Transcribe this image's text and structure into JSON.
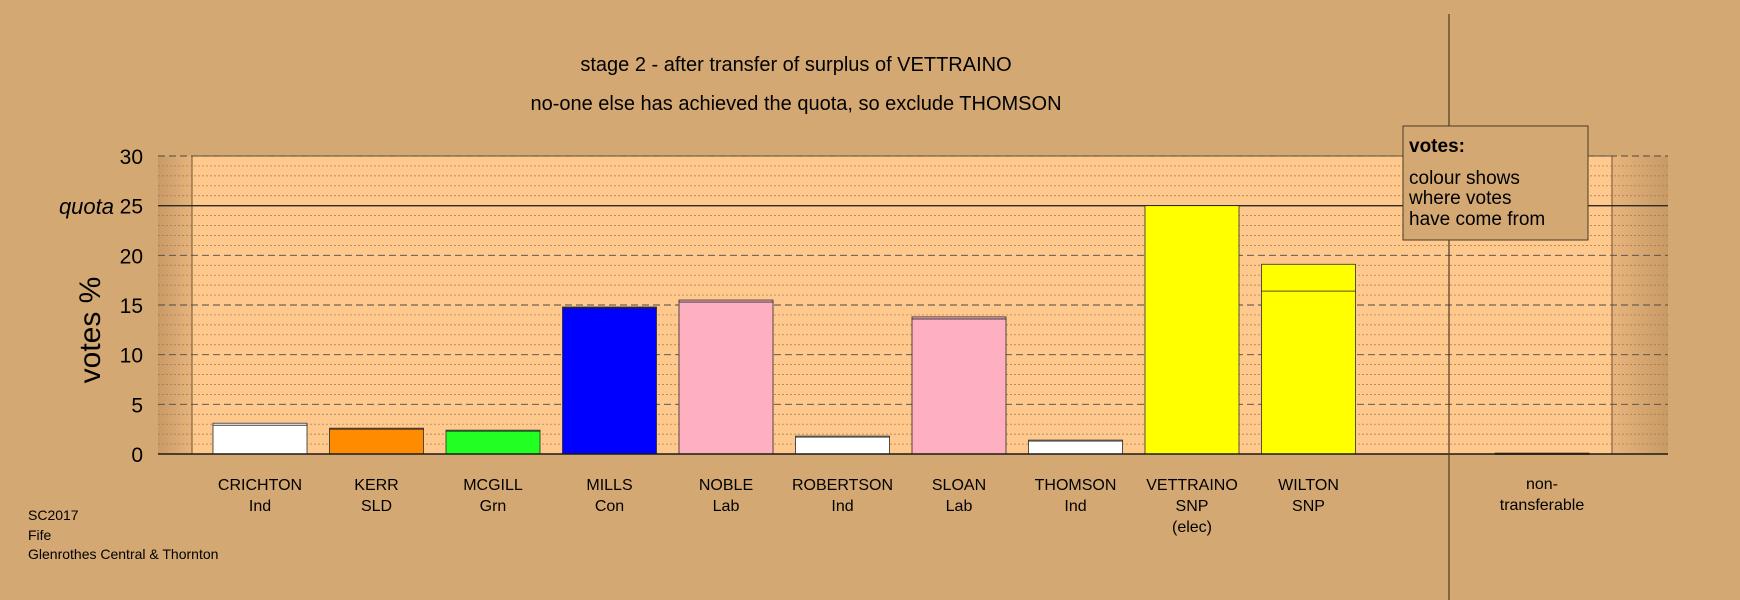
{
  "chart_data": {
    "type": "bar",
    "title_lines": [
      "stage 2 - after transfer of surplus of VETTRAINO",
      "no-one else has achieved the quota, so exclude THOMSON"
    ],
    "ylabel": "votes %",
    "ylim": [
      0,
      30
    ],
    "yticks": [
      0,
      5,
      10,
      15,
      20,
      25,
      30
    ],
    "quota": 25,
    "quota_label": "quota",
    "candidates": [
      {
        "name": "CRICHTON",
        "party": "Ind",
        "note": "",
        "color": "#ffffff",
        "segments": [
          {
            "value": 2.9,
            "color": "#ffffff"
          },
          {
            "value": 0.2,
            "color": "#ffffff"
          }
        ]
      },
      {
        "name": "KERR",
        "party": "SLD",
        "note": "",
        "color": "#ff8c00",
        "segments": [
          {
            "value": 2.5,
            "color": "#ff8c00"
          },
          {
            "value": 0.1,
            "color": "#ff8c00"
          }
        ]
      },
      {
        "name": "MCGILL",
        "party": "Grn",
        "note": "",
        "color": "#22ff22",
        "segments": [
          {
            "value": 2.3,
            "color": "#22ff22"
          },
          {
            "value": 0.1,
            "color": "#22ff22"
          }
        ]
      },
      {
        "name": "MILLS",
        "party": "Con",
        "note": "",
        "color": "#0000ff",
        "segments": [
          {
            "value": 14.7,
            "color": "#0000ff"
          },
          {
            "value": 0.1,
            "color": "#0000ff"
          }
        ]
      },
      {
        "name": "NOBLE",
        "party": "Lab",
        "note": "",
        "color": "#ffb0c0",
        "segments": [
          {
            "value": 15.3,
            "color": "#ffb0c0"
          },
          {
            "value": 0.2,
            "color": "#ffb0c0"
          }
        ]
      },
      {
        "name": "ROBERTSON",
        "party": "Ind",
        "note": "",
        "color": "#ffffff",
        "segments": [
          {
            "value": 1.7,
            "color": "#ffffff"
          },
          {
            "value": 0.1,
            "color": "#ffffff"
          }
        ]
      },
      {
        "name": "SLOAN",
        "party": "Lab",
        "note": "",
        "color": "#ffb0c0",
        "segments": [
          {
            "value": 13.6,
            "color": "#ffb0c0"
          },
          {
            "value": 0.2,
            "color": "#ffb0c0"
          }
        ]
      },
      {
        "name": "THOMSON",
        "party": "Ind",
        "note": "",
        "color": "#ffffff",
        "segments": [
          {
            "value": 1.3,
            "color": "#ffffff"
          },
          {
            "value": 0.1,
            "color": "#ffffff"
          }
        ]
      },
      {
        "name": "VETTRAINO",
        "party": "SNP",
        "note": "(elec)",
        "color": "#ffff00",
        "segments": [
          {
            "value": 25.0,
            "color": "#ffff00"
          }
        ]
      },
      {
        "name": "WILTON",
        "party": "SNP",
        "note": "",
        "color": "#ffff00",
        "segments": [
          {
            "value": 16.4,
            "color": "#ffff00"
          },
          {
            "value": 2.7,
            "color": "#ffff00"
          }
        ]
      }
    ],
    "nontransferable": {
      "label_lines": [
        "non-",
        "transferable"
      ],
      "value": 0.1,
      "color": "#555522"
    },
    "legend": {
      "title": "votes:",
      "lines": [
        "colour shows",
        "where votes",
        "have come from"
      ]
    }
  },
  "footer": {
    "lines": [
      "SC2017",
      "Fife",
      "Glenrothes Central & Thornton"
    ]
  }
}
